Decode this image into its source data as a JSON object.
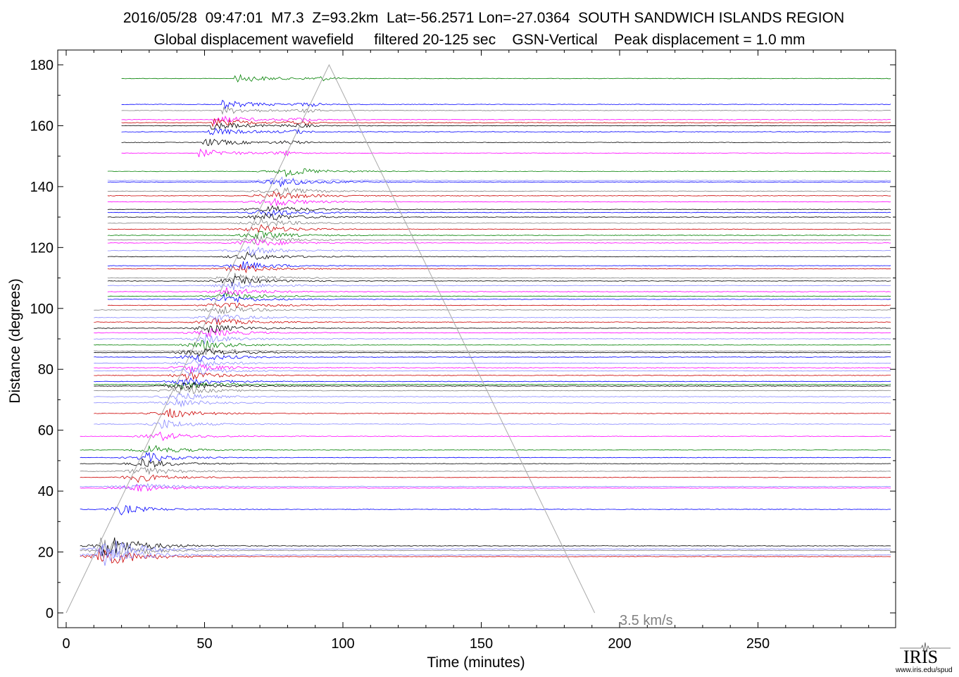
{
  "title": {
    "line1": "2016/05/28  09:47:01  M7.3  Z=93.2km  Lat=-56.2571 Lon=-27.0364  SOUTH SANDWICH ISLANDS REGION",
    "line2": "Global displacement wavefield     filtered 20-125 sec    GSN-Vertical    Peak displacement = 1.0 mm"
  },
  "logo": {
    "name": "IRIS",
    "url": "www.iris.edu/spud",
    "icon": "seismogram-icon"
  },
  "chart_data": {
    "type": "line",
    "title": "Global displacement wavefield",
    "xlabel": "Time (minutes)",
    "ylabel": "Distance (degrees)",
    "xlim": [
      -2,
      300
    ],
    "ylim": [
      -5,
      185
    ],
    "xticks": [
      0,
      50,
      100,
      150,
      200,
      250
    ],
    "yticks": [
      0,
      20,
      40,
      60,
      80,
      100,
      120,
      140,
      160,
      180
    ],
    "grid": false,
    "annotation": {
      "text": "3.5 km/s",
      "x": 200,
      "y": -2
    },
    "reference_line": {
      "name": "3.5 km/s",
      "points": [
        [
          0,
          0
        ],
        [
          95,
          180
        ],
        [
          191,
          0
        ]
      ]
    },
    "colors": [
      "#008000",
      "#0000ff",
      "#808080",
      "#ff00ff",
      "#cc0000",
      "#000000",
      "#8888ff"
    ],
    "station_distances": [
      175.5,
      167,
      165,
      162,
      161,
      160,
      158,
      154.5,
      151,
      145,
      142,
      141.5,
      138.5,
      137,
      135,
      132.5,
      131.5,
      130,
      128,
      126,
      124,
      122.5,
      121.5,
      119,
      117,
      114,
      113,
      110,
      109,
      107.5,
      105.5,
      104,
      103,
      101,
      99.5,
      97,
      95.5,
      93.5,
      92,
      90,
      88,
      86,
      85.5,
      84,
      82,
      80.5,
      79.5,
      78,
      76,
      75,
      74.5,
      73,
      71,
      69,
      65.5,
      62,
      58,
      53.5,
      51,
      49,
      46.5,
      44.5,
      41.5,
      41,
      34,
      22,
      21,
      20.5,
      19,
      18.5
    ],
    "series": [
      {
        "color": "#008000",
        "values": [
          175.5,
          145,
          124,
          104,
          88,
          75,
          53.5
        ]
      },
      {
        "color": "#0000ff",
        "values": [
          167,
          158,
          141.5,
          131.5,
          114,
          103,
          84,
          76,
          51,
          34
        ]
      },
      {
        "color": "#808080",
        "values": [
          165,
          138.5,
          128,
          122.5,
          110,
          99.5,
          86,
          73,
          46.5,
          20.5
        ]
      },
      {
        "color": "#ff00ff",
        "values": [
          162,
          151,
          135,
          121.5,
          105.5,
          92,
          80.5,
          58,
          41
        ]
      },
      {
        "color": "#cc0000",
        "values": [
          161,
          137,
          126,
          113,
          101,
          95.5,
          78,
          65.5,
          44.5,
          18.5
        ]
      },
      {
        "color": "#000000",
        "values": [
          160,
          154.5,
          132.5,
          130,
          117,
          109,
          93.5,
          85.5,
          74.5,
          49,
          22
        ]
      },
      {
        "color": "#8888ff",
        "values": [
          142,
          119,
          107.5,
          97,
          90,
          82,
          79.5,
          71,
          69,
          62,
          41.5,
          21,
          19
        ]
      }
    ]
  }
}
